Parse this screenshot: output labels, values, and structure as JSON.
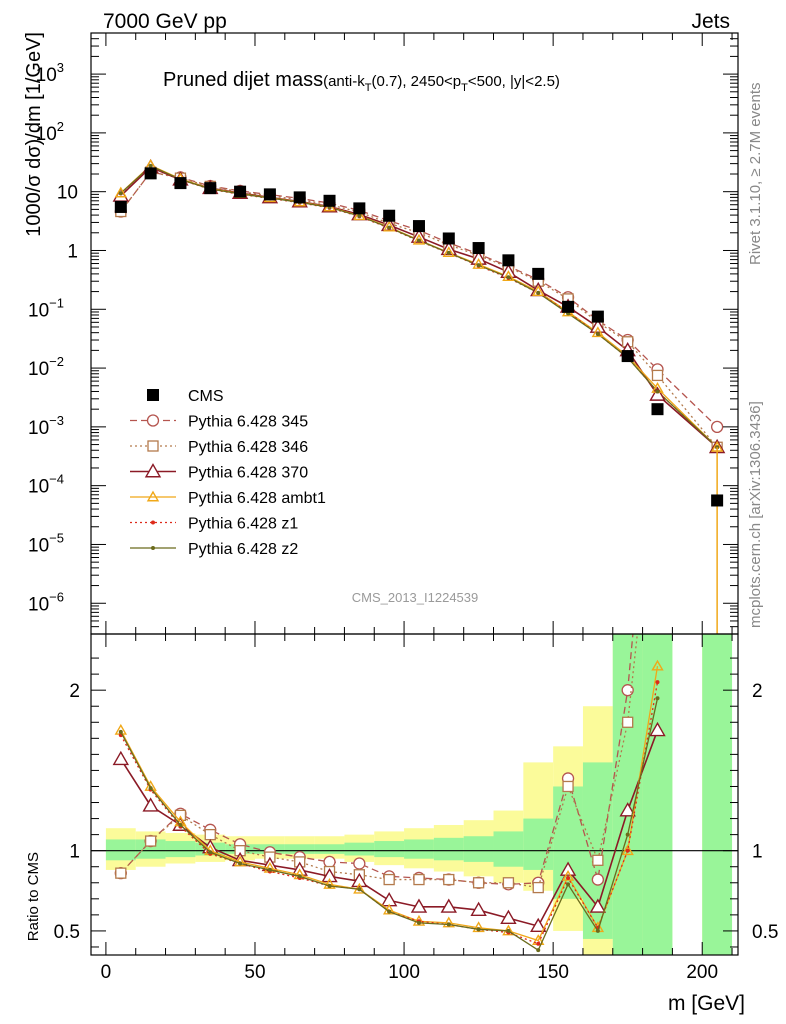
{
  "header": {
    "left": "7000 GeV pp",
    "right": "Jets"
  },
  "title": {
    "main": "Pruned dijet mass",
    "sub_pre": "(anti-k",
    "sub_sub1": "T",
    "sub_mid": "(0.7), 2450<p",
    "sub_sub2": "T",
    "sub_post": "<500, |y|<2.5)"
  },
  "side_labels": {
    "rivet": "Rivet 3.1.10, ≥ 2.7M events",
    "mcplots": "mcplots.cern.ch [arXiv:1306.3436]"
  },
  "watermark": "CMS_2013_I1224539",
  "ylabel_main": "1000/σ dσ)/dm [1/GeV]",
  "ylabel_ratio": "Ratio to CMS",
  "xlabel": "m [GeV]",
  "colors": {
    "cms": "#000000",
    "p345": "#b5554f",
    "p346": "#b37a4c",
    "p370": "#8b1a26",
    "ambt1": "#f0a818",
    "z1": "#dd2a1a",
    "z2": "#6b6b1c",
    "band_inner": "#99f599",
    "band_outer": "#fbfb9a"
  },
  "chart_data": [
    {
      "type": "scatter",
      "panel": "main",
      "yscale": "log",
      "xlim": [
        -5,
        212
      ],
      "ylim": [
        3e-07,
        5000
      ],
      "x_ticks": [
        "0",
        "50",
        "100",
        "150",
        "200"
      ],
      "y_ticks": [
        {
          "base": "10",
          "exp": "−6"
        },
        {
          "base": "10",
          "exp": "−5"
        },
        {
          "base": "10",
          "exp": "−4"
        },
        {
          "base": "10",
          "exp": "−3"
        },
        {
          "base": "10",
          "exp": "−2"
        },
        {
          "base": "10",
          "exp": "−1"
        },
        {
          "base": "1",
          "exp": ""
        },
        {
          "base": "10",
          "exp": ""
        },
        {
          "base": "10",
          "exp": "2"
        },
        {
          "base": "10",
          "exp": "3"
        }
      ],
      "x": [
        5,
        15,
        25,
        35,
        45,
        55,
        65,
        75,
        85,
        95,
        105,
        115,
        125,
        135,
        145,
        155,
        165,
        175,
        185,
        205
      ],
      "series": [
        {
          "name": "CMS",
          "key": "cms",
          "values": [
            5.5,
            20.5,
            14,
            11.5,
            10,
            9,
            8,
            7,
            5.2,
            3.9,
            2.6,
            1.6,
            1.1,
            0.68,
            0.4,
            0.11,
            0.075,
            0.016,
            0.002,
            5.6e-05
          ]
        },
        {
          "name": "Pythia 6.428 345",
          "key": "p345",
          "values": [
            4.6,
            21.5,
            17.5,
            12.5,
            10.3,
            8.9,
            7.7,
            6.4,
            4.8,
            3.2,
            2.2,
            1.35,
            0.87,
            0.54,
            0.32,
            0.16,
            0.065,
            0.03,
            0.0095,
            0.001
          ]
        },
        {
          "name": "Pythia 6.428 346",
          "key": "p346",
          "values": [
            4.6,
            21.5,
            17,
            12.3,
            10,
            8.5,
            7.3,
            6.0,
            4.5,
            2.9,
            2.0,
            1.25,
            0.82,
            0.52,
            0.3,
            0.15,
            0.06,
            0.028,
            0.0075,
            0.00045
          ]
        },
        {
          "name": "Pythia 6.428 370",
          "key": "p370",
          "values": [
            8.5,
            26,
            16,
            11.5,
            9.5,
            8,
            6.8,
            5.6,
            4.1,
            2.7,
            1.7,
            1.05,
            0.72,
            0.43,
            0.21,
            0.11,
            0.05,
            0.02,
            0.0035,
            0.00045
          ]
        },
        {
          "name": "Pythia 6.428 ambt1",
          "key": "ambt1",
          "values": [
            9.5,
            28,
            16.5,
            11.3,
            9.3,
            7.9,
            6.7,
            5.5,
            3.9,
            2.5,
            1.5,
            0.92,
            0.58,
            0.36,
            0.2,
            0.09,
            0.04,
            0.016,
            0.0045,
            0.00045
          ]
        },
        {
          "name": "Pythia 6.428 z1",
          "key": "z1",
          "values": [
            9.3,
            27,
            16,
            11,
            9,
            7.7,
            6.5,
            5.3,
            3.8,
            2.4,
            1.45,
            0.9,
            0.55,
            0.34,
            0.19,
            0.09,
            0.038,
            0.015,
            0.004,
            0.00045
          ]
        },
        {
          "name": "Pythia 6.428 z2",
          "key": "z2",
          "values": [
            9.4,
            27.5,
            16.2,
            11.1,
            9.2,
            7.8,
            6.6,
            5.4,
            3.85,
            2.45,
            1.48,
            0.91,
            0.56,
            0.35,
            0.19,
            0.085,
            0.038,
            0.015,
            0.004,
            0.00045
          ]
        }
      ]
    },
    {
      "type": "line",
      "panel": "ratio",
      "xlim": [
        -5,
        212
      ],
      "ylim": [
        0.35,
        2.35
      ],
      "y_ticks": [
        "0.5",
        "1",
        "2"
      ],
      "x": [
        5,
        15,
        25,
        35,
        45,
        55,
        65,
        75,
        85,
        95,
        105,
        115,
        125,
        135,
        145,
        155,
        165,
        175,
        185
      ],
      "band_edges": [
        0,
        10,
        20,
        30,
        40,
        50,
        60,
        70,
        80,
        90,
        100,
        110,
        120,
        130,
        140,
        150,
        160,
        170,
        180,
        190,
        200,
        210
      ],
      "band_inner": [
        [
          0.94,
          1.07
        ],
        [
          0.95,
          1.07
        ],
        [
          0.96,
          1.06
        ],
        [
          0.97,
          1.05
        ],
        [
          0.98,
          1.04
        ],
        [
          0.98,
          1.04
        ],
        [
          0.98,
          1.04
        ],
        [
          0.98,
          1.04
        ],
        [
          0.97,
          1.05
        ],
        [
          0.96,
          1.06
        ],
        [
          0.95,
          1.07
        ],
        [
          0.94,
          1.08
        ],
        [
          0.93,
          1.09
        ],
        [
          0.9,
          1.12
        ],
        [
          0.88,
          1.2
        ],
        [
          0.7,
          1.4
        ],
        [
          0.45,
          1.55
        ],
        [
          0.35,
          2.35
        ],
        [
          0.35,
          2.35
        ],
        null,
        [
          0.35,
          2.35
        ]
      ],
      "band_outer": [
        [
          0.88,
          1.14
        ],
        [
          0.9,
          1.12
        ],
        [
          0.92,
          1.11
        ],
        [
          0.93,
          1.1
        ],
        [
          0.94,
          1.09
        ],
        [
          0.95,
          1.09
        ],
        [
          0.95,
          1.09
        ],
        [
          0.95,
          1.09
        ],
        [
          0.93,
          1.1
        ],
        [
          0.91,
          1.12
        ],
        [
          0.89,
          1.14
        ],
        [
          0.87,
          1.16
        ],
        [
          0.84,
          1.19
        ],
        [
          0.8,
          1.25
        ],
        [
          0.75,
          1.55
        ],
        [
          0.5,
          1.65
        ],
        [
          0.35,
          1.9
        ],
        [
          0.35,
          2.35
        ],
        [
          0.35,
          2.35
        ],
        null,
        [
          0.35,
          2.35
        ]
      ],
      "series": [
        {
          "name": "Pythia 6.428 345",
          "key": "p345",
          "values": [
            0.86,
            1.06,
            1.23,
            1.13,
            1.04,
            0.99,
            0.96,
            0.93,
            0.92,
            0.84,
            0.83,
            0.82,
            0.8,
            0.79,
            0.8,
            1.45,
            0.82,
            2.0,
            4.0
          ]
        },
        {
          "name": "Pythia 6.428 346",
          "key": "p346",
          "values": [
            0.86,
            1.06,
            1.22,
            1.1,
            1.0,
            0.96,
            0.93,
            0.87,
            0.85,
            0.82,
            0.82,
            0.82,
            0.8,
            0.8,
            0.77,
            1.4,
            0.94,
            1.8,
            3.5
          ]
        },
        {
          "name": "Pythia 6.428 370",
          "key": "p370",
          "values": [
            1.57,
            1.28,
            1.16,
            1.02,
            0.94,
            0.91,
            0.88,
            0.84,
            0.81,
            0.69,
            0.65,
            0.65,
            0.63,
            0.58,
            0.53,
            0.88,
            0.65,
            1.25,
            1.75
          ]
        },
        {
          "name": "Pythia 6.428 ambt1",
          "key": "ambt1",
          "values": [
            1.75,
            1.4,
            1.18,
            1.0,
            0.93,
            0.89,
            0.85,
            0.79,
            0.76,
            0.63,
            0.56,
            0.55,
            0.52,
            0.5,
            0.44,
            0.84,
            0.52,
            1.0,
            2.15
          ]
        },
        {
          "name": "Pythia 6.428 z1",
          "key": "z1",
          "values": [
            1.72,
            1.38,
            1.15,
            0.98,
            0.92,
            0.87,
            0.83,
            0.78,
            0.76,
            0.62,
            0.56,
            0.54,
            0.51,
            0.49,
            0.42,
            0.83,
            0.52,
            1.0,
            2.05
          ]
        },
        {
          "name": "Pythia 6.428 z2",
          "key": "z2",
          "values": [
            1.74,
            1.39,
            1.16,
            0.99,
            0.92,
            0.88,
            0.84,
            0.78,
            0.76,
            0.62,
            0.55,
            0.54,
            0.51,
            0.5,
            0.38,
            0.79,
            0.5,
            1.1,
            1.95
          ]
        }
      ]
    }
  ]
}
